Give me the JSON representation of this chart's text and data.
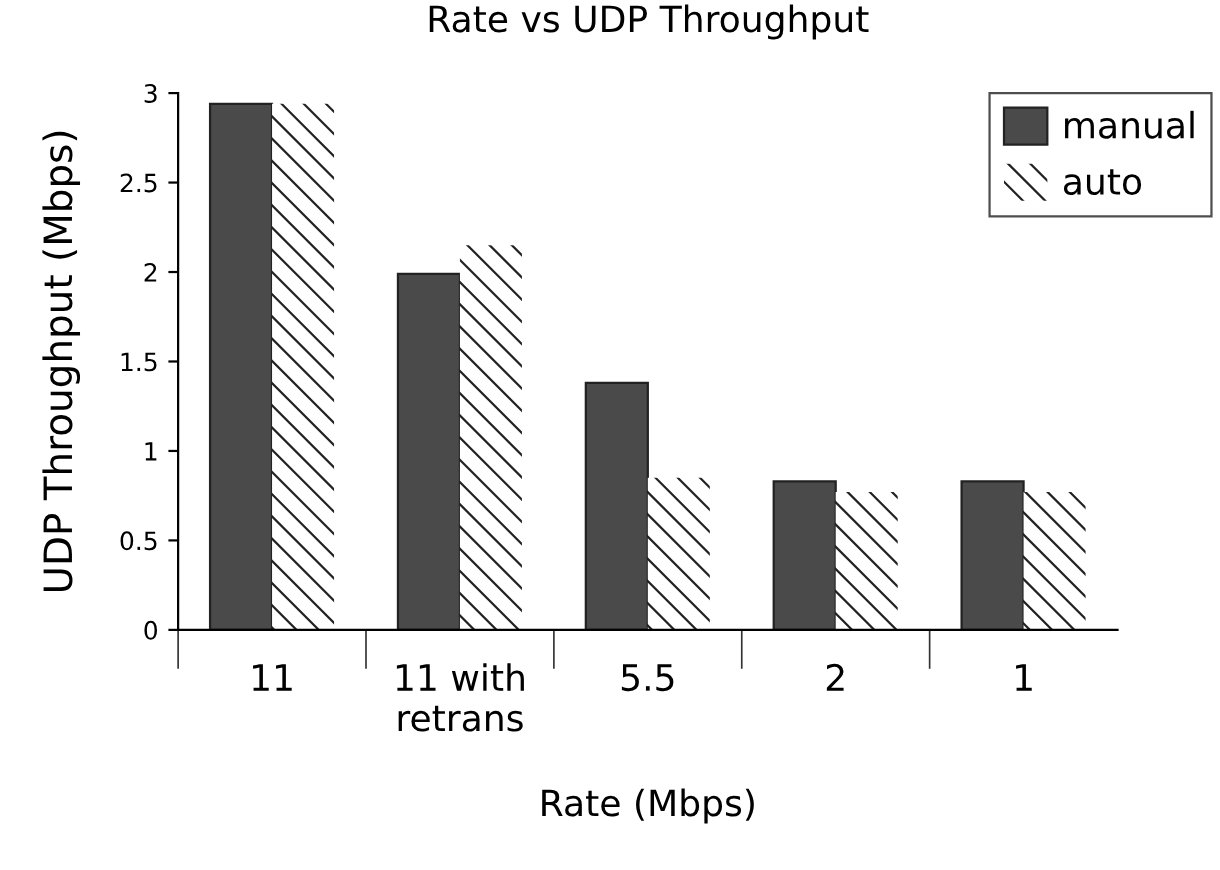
{
  "chart_data": {
    "type": "bar",
    "title": "Rate vs UDP Throughput",
    "xlabel": "Rate (Mbps)",
    "ylabel": "UDP Throughput (Mbps)",
    "categories": [
      "11",
      "11 with\nretrans",
      "5.5",
      "2",
      "1"
    ],
    "series": [
      {
        "name": "manual",
        "color": "#4a4a4a",
        "values": [
          2.94,
          1.99,
          1.38,
          0.83,
          0.83
        ]
      },
      {
        "name": "auto",
        "color": "#ffffff",
        "values": [
          2.94,
          2.15,
          0.85,
          0.77,
          0.77
        ]
      }
    ],
    "ylim": [
      0,
      3
    ],
    "yticks": [
      0,
      0.5,
      1,
      1.5,
      2,
      2.5,
      3
    ],
    "grid": false,
    "legend": "top right"
  }
}
